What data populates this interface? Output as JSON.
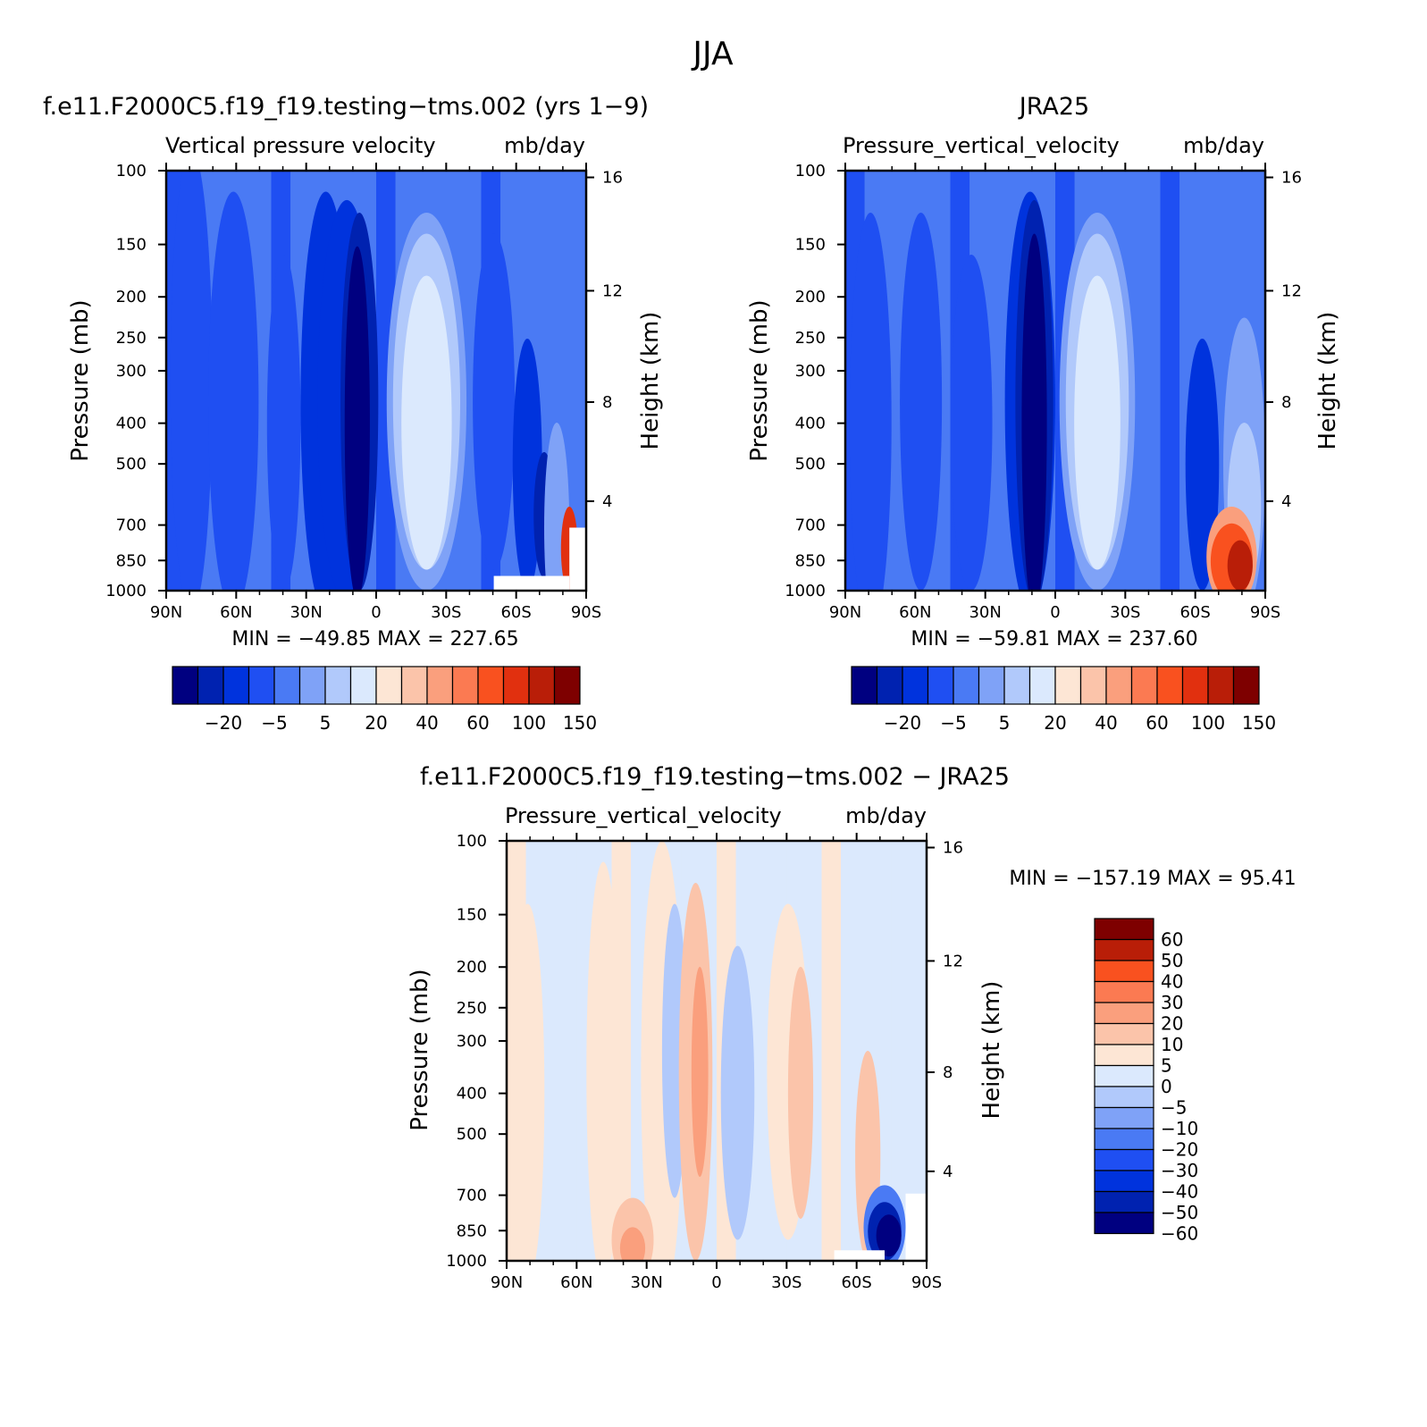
{
  "figure": {
    "title": "JJA"
  },
  "palettes": {
    "main": [
      "#000080",
      "#0022b0",
      "#0033dd",
      "#1f4ff2",
      "#4a7af4",
      "#7fa2f7",
      "#b1c9fb",
      "#dbe9fd",
      "#fde6d5",
      "#fbc4aa",
      "#fa9f7d",
      "#fb7a52",
      "#f9511f",
      "#e1300f",
      "#b91e08",
      "#7e0000"
    ],
    "diff": [
      "#000080",
      "#0022b0",
      "#0033dd",
      "#1f4ff2",
      "#4a7af4",
      "#7fa2f7",
      "#b1c9fb",
      "#dbe9fd",
      "#fde6d5",
      "#fbc4aa",
      "#fa9f7d",
      "#fb7a52",
      "#f9511f",
      "#b91e08",
      "#7e0000"
    ]
  },
  "chart_data": [
    {
      "type": "heatmap",
      "panel": "top-left",
      "title": "f.e11.F2000C5.f19_f19.testing−tms.002 (yrs 1−9)",
      "subtitle_left": "Vertical pressure velocity",
      "subtitle_right": "mb/day",
      "ylabel": "Pressure (mb)",
      "y2label": "Height (km)",
      "x_ticks": [
        "90N",
        "60N",
        "30N",
        "0",
        "30S",
        "60S",
        "90S"
      ],
      "y_ticks": [
        "100",
        "150",
        "200",
        "250",
        "300",
        "400",
        "500",
        "700",
        "850",
        "1000"
      ],
      "y2_ticks": [
        "16",
        "12",
        "8",
        "4"
      ],
      "stats": "MIN = −49.85   MAX = 227.65",
      "colorbar": {
        "orientation": "horizontal",
        "labels": [
          "−20",
          "−5",
          "5",
          "20",
          "40",
          "60",
          "100",
          "150"
        ]
      },
      "note": "zonal-mean latitude–pressure field; color classes indexed into palette"
    },
    {
      "type": "heatmap",
      "panel": "top-right",
      "title": "JRA25",
      "subtitle_left": "Pressure_vertical_velocity",
      "subtitle_right": "mb/day",
      "ylabel": "Pressure (mb)",
      "y2label": "Height (km)",
      "x_ticks": [
        "90N",
        "60N",
        "30N",
        "0",
        "30S",
        "60S",
        "90S"
      ],
      "y_ticks": [
        "100",
        "150",
        "200",
        "250",
        "300",
        "400",
        "500",
        "700",
        "850",
        "1000"
      ],
      "y2_ticks": [
        "16",
        "12",
        "8",
        "4"
      ],
      "stats": "MIN = −59.81   MAX = 237.60",
      "colorbar": {
        "orientation": "horizontal",
        "labels": [
          "−20",
          "−5",
          "5",
          "20",
          "40",
          "60",
          "100",
          "150"
        ]
      }
    },
    {
      "type": "heatmap",
      "panel": "bottom",
      "title": "f.e11.F2000C5.f19_f19.testing−tms.002 − JRA25",
      "subtitle_left": "Pressure_vertical_velocity",
      "subtitle_right": "mb/day",
      "ylabel": "Pressure (mb)",
      "y2label": "Height (km)",
      "x_ticks": [
        "90N",
        "60N",
        "30N",
        "0",
        "30S",
        "60S",
        "90S"
      ],
      "y_ticks": [
        "100",
        "150",
        "200",
        "250",
        "300",
        "400",
        "500",
        "700",
        "850",
        "1000"
      ],
      "y2_ticks": [
        "16",
        "12",
        "8",
        "4"
      ],
      "stats": "MIN = −157.19   MAX =   95.41",
      "colorbar": {
        "orientation": "vertical",
        "labels": [
          "60",
          "50",
          "40",
          "30",
          "20",
          "10",
          "5",
          "0",
          "−5",
          "−10",
          "−20",
          "−30",
          "−40",
          "−50",
          "−60"
        ]
      }
    }
  ]
}
